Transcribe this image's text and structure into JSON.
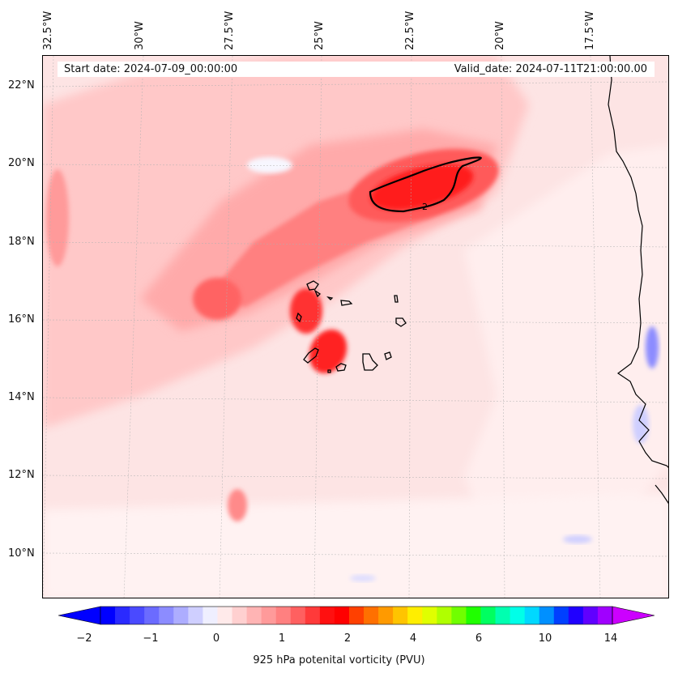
{
  "map": {
    "title_left": "Start date: 2024-07-09_00:00:00",
    "title_right": "Valid_date: 2024-07-11T21:00:00.00",
    "lon_labels": [
      "32.5°W",
      "30°W",
      "27.5°W",
      "25°W",
      "22.5°W",
      "20°W",
      "17.5°W"
    ],
    "lat_labels": [
      "22°N",
      "20°N",
      "18°N",
      "16°N",
      "14°N",
      "12°N",
      "10°N"
    ],
    "contour_label": "2",
    "colors": {
      "coast": "#000000",
      "grid": "#b0b0b0"
    }
  },
  "colorbar": {
    "title": "925 hPa potenital vorticity (PVU)",
    "ticks": [
      "−2",
      "−1",
      "0",
      "1",
      "2",
      "4",
      "6",
      "10",
      "14"
    ],
    "colors": [
      "#0000ff",
      "#2a2aff",
      "#4a4aff",
      "#6b6bff",
      "#8c8cff",
      "#adadff",
      "#cfcfff",
      "#efefff",
      "#ffeaea",
      "#ffd0d0",
      "#ffb4b4",
      "#ff9a9a",
      "#ff8080",
      "#ff6060",
      "#ff3a3a",
      "#ff1010",
      "#ff0000",
      "#ff4000",
      "#ff7000",
      "#ff9a00",
      "#ffc400",
      "#ffee00",
      "#e0ff00",
      "#b0ff00",
      "#70ff00",
      "#20ff00",
      "#00ff60",
      "#00ffb0",
      "#00ffe8",
      "#00d8ff",
      "#0090ff",
      "#0040ff",
      "#2000ff",
      "#6000ff",
      "#a000ff"
    ],
    "min_color": "#0000ff",
    "max_color": "#cc00ff"
  }
}
